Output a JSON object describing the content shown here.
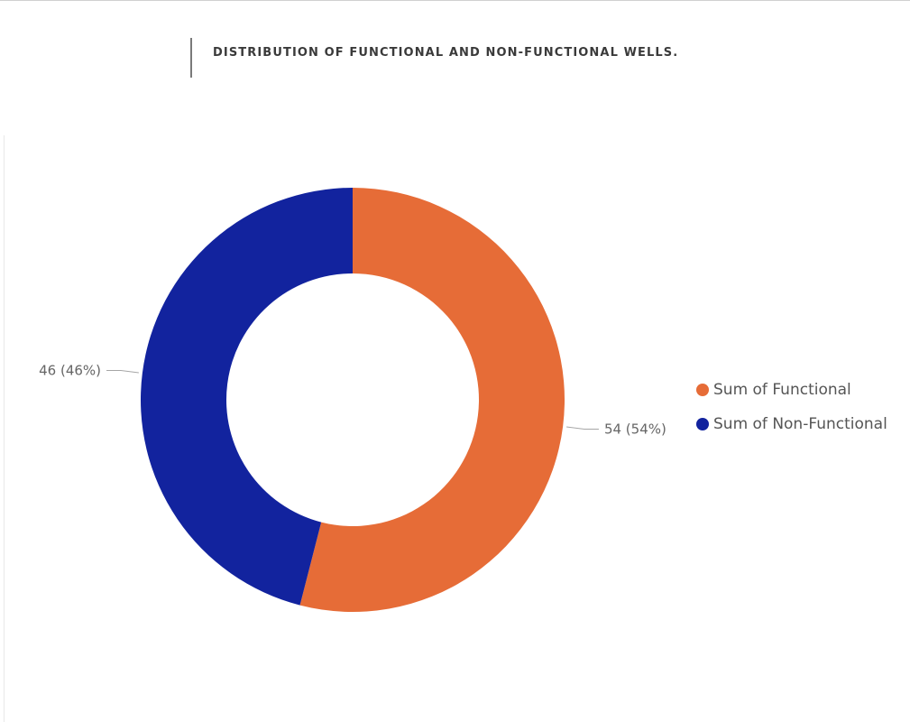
{
  "title": "DISTRIBUTION OF FUNCTIONAL AND NON-FUNCTIONAL WELLS.",
  "chart_data": {
    "type": "pie",
    "variant": "donut",
    "title": "DISTRIBUTION OF FUNCTIONAL AND NON-FUNCTIONAL WELLS.",
    "categories": [
      "Sum of Functional",
      "Sum of Non-Functional"
    ],
    "values": [
      54,
      46
    ],
    "percentages": [
      54,
      46
    ],
    "data_labels": [
      "54 (54%)",
      "46 (46%)"
    ],
    "colors": [
      "#E66C37",
      "#12239E"
    ],
    "legend_position": "right"
  },
  "legend": {
    "items": [
      {
        "label": "Sum of Functional",
        "color": "#E66C37"
      },
      {
        "label": "Sum of Non-Functional",
        "color": "#12239E"
      }
    ]
  }
}
